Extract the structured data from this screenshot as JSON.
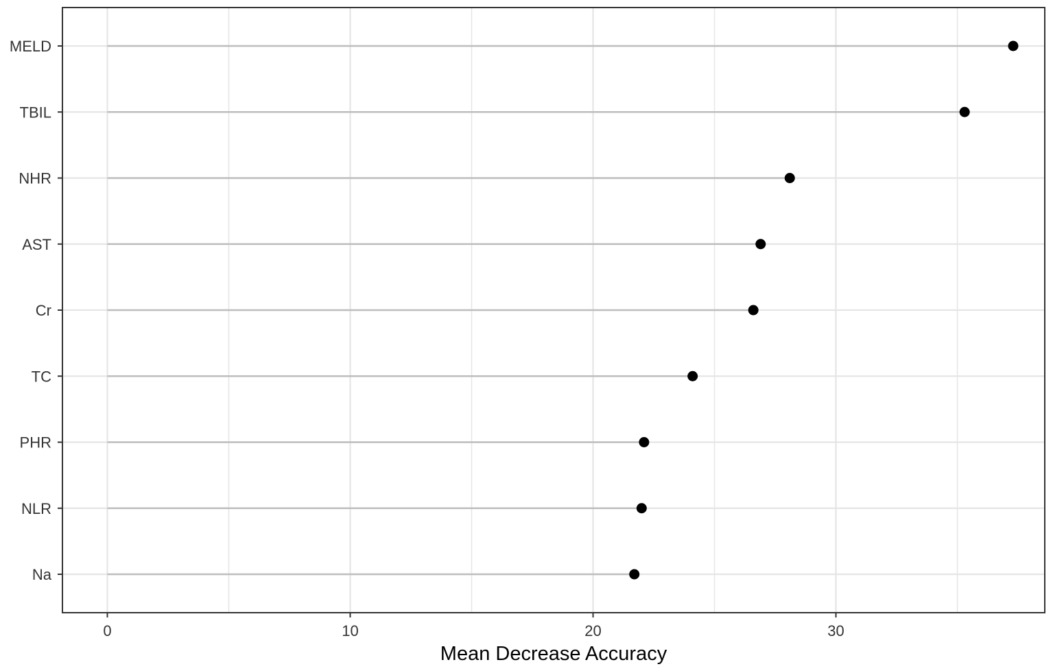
{
  "chart_data": {
    "type": "lollipop",
    "xlabel": "Mean Decrease Accuracy",
    "ylabel": "",
    "xlim": [
      -1.85,
      38.6
    ],
    "x_ticks": [
      0,
      10,
      20,
      30
    ],
    "x_minor_gridlines": [
      5,
      15,
      25,
      35
    ],
    "grid": true,
    "categories": [
      "MELD",
      "TBIL",
      "NHR",
      "AST",
      "Cr",
      "TC",
      "PHR",
      "NLR",
      "Na"
    ],
    "values": [
      37.3,
      35.3,
      28.1,
      26.9,
      26.6,
      24.1,
      22.1,
      22.0,
      21.7
    ],
    "colors": {
      "point": "#000000",
      "segment": "#bdbdbd",
      "grid": "#e5e5e5",
      "panel_border": "#333333"
    }
  }
}
